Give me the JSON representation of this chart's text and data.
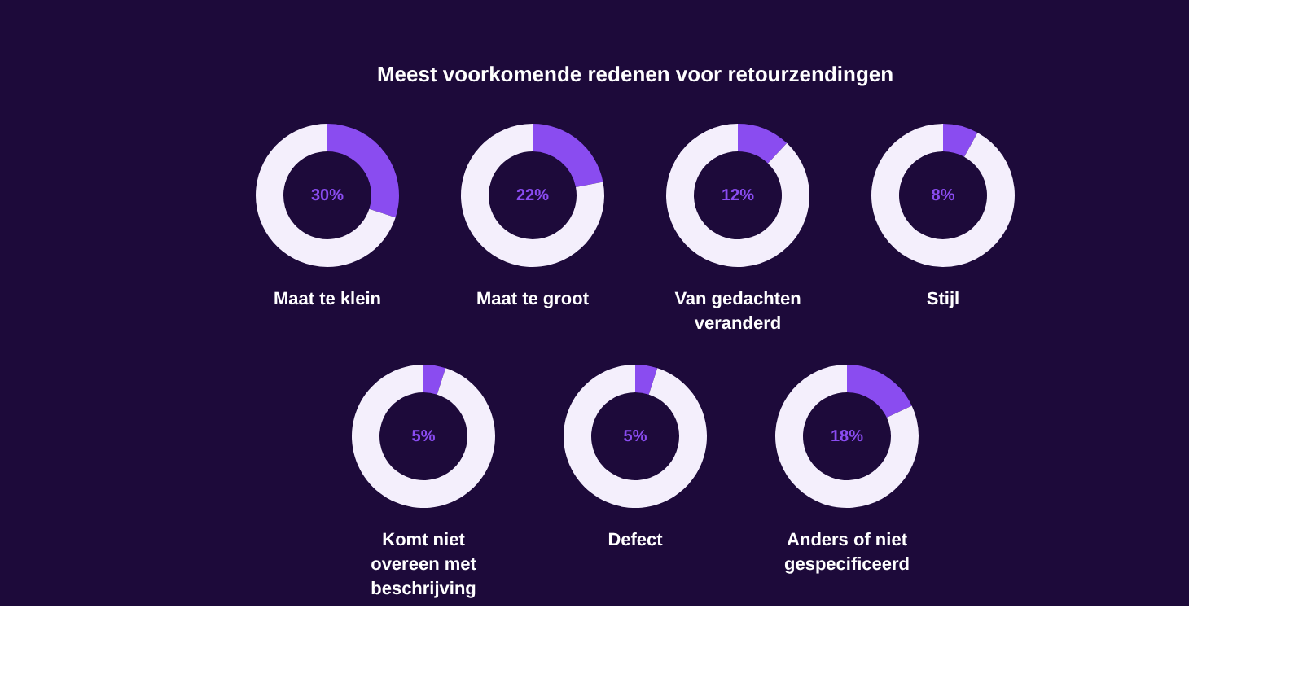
{
  "chart_data": [
    {
      "type": "other",
      "title": "Meest voorkomende redenen voor retourzendingen"
    },
    {
      "type": "donut",
      "title": "Maat te klein",
      "categories": [
        null,
        null
      ],
      "values": [
        30,
        70
      ],
      "colors": [
        "#8a4cf0",
        "#f4effc"
      ],
      "annotations": [
        "30%"
      ]
    },
    {
      "type": "donut",
      "title": "Maat te groot",
      "categories": [
        null,
        null
      ],
      "values": [
        22,
        78
      ],
      "colors": [
        "#8a4cf0",
        "#f4effc"
      ],
      "annotations": [
        "22%"
      ]
    },
    {
      "type": "donut",
      "title": "Van gedachten veranderd",
      "categories": [
        null,
        null
      ],
      "values": [
        12,
        88
      ],
      "colors": [
        "#8a4cf0",
        "#f4effc"
      ],
      "annotations": [
        "12%"
      ]
    },
    {
      "type": "donut",
      "title": "Stijl",
      "categories": [
        null,
        null
      ],
      "values": [
        8,
        92
      ],
      "colors": [
        "#8a4cf0",
        "#f4effc"
      ],
      "annotations": [
        "8%"
      ]
    },
    {
      "type": "donut",
      "title": "Komt niet overeen met beschrijving",
      "categories": [
        null,
        null
      ],
      "values": [
        5,
        95
      ],
      "colors": [
        "#8a4cf0",
        "#f4effc"
      ],
      "annotations": [
        "5%"
      ]
    },
    {
      "type": "donut",
      "title": "Defect",
      "categories": [
        null,
        null
      ],
      "values": [
        5,
        95
      ],
      "colors": [
        "#8a4cf0",
        "#f4effc"
      ],
      "annotations": [
        "5%"
      ]
    },
    {
      "type": "donut",
      "title": "Anders of niet gespecificeerd",
      "categories": [
        null,
        null
      ],
      "values": [
        18,
        82
      ],
      "colors": [
        "#8a4cf0",
        "#f4effc"
      ],
      "annotations": [
        "18%"
      ]
    }
  ]
}
